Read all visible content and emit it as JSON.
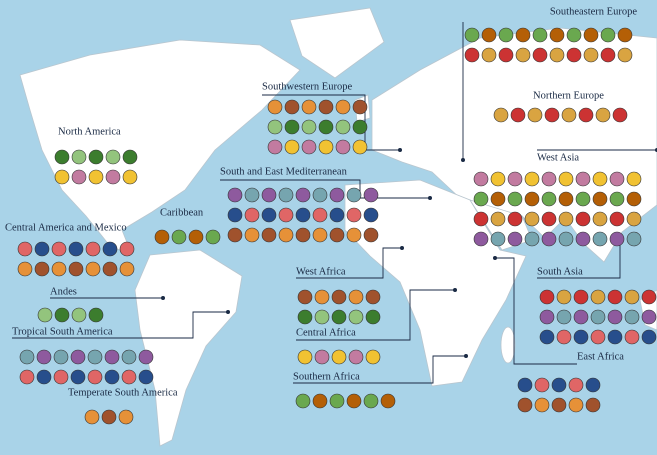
{
  "regions": [
    {
      "label": "Southeastern Europe"
    },
    {
      "label": "Southwestern Europe"
    },
    {
      "label": "Northern Europe"
    },
    {
      "label": "North America"
    },
    {
      "label": "South and East Mediterranean"
    },
    {
      "label": "West Asia"
    },
    {
      "label": "Central America and Mexico"
    },
    {
      "label": "Caribbean"
    },
    {
      "label": "West Africa"
    },
    {
      "label": "South Asia"
    },
    {
      "label": "Andes"
    },
    {
      "label": "Tropical South America"
    },
    {
      "label": "Central Africa"
    },
    {
      "label": "East Africa"
    },
    {
      "label": "Southern Africa"
    },
    {
      "label": "Temperate South America"
    }
  ]
}
